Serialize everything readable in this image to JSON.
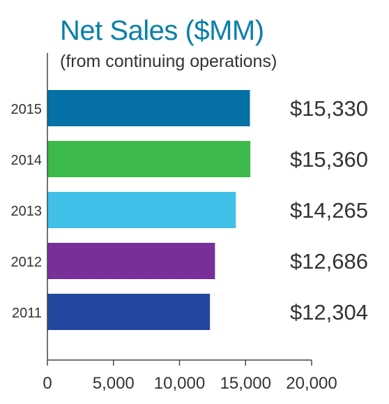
{
  "chart_data": {
    "type": "bar",
    "orientation": "horizontal",
    "title": "Net Sales ($MM)",
    "subtitle": "(from continuing operations)",
    "categories": [
      "2015",
      "2014",
      "2013",
      "2012",
      "2011"
    ],
    "values": [
      15330,
      15360,
      14265,
      12686,
      12304
    ],
    "value_labels": [
      "$15,330",
      "$15,360",
      "$14,265",
      "$12,686",
      "$12,304"
    ],
    "bar_colors": [
      "#0571a6",
      "#3cb94b",
      "#40c0e8",
      "#782f9a",
      "#2348a0"
    ],
    "xlim": [
      0,
      20000
    ],
    "x_ticks": [
      0,
      5000,
      10000,
      15000,
      20000
    ],
    "x_tick_labels": [
      "0",
      "5,000",
      "10,000",
      "15,000",
      "20,000"
    ],
    "grid": false,
    "legend": "none"
  },
  "colors": {
    "title": "#0a7fa8",
    "text": "#333333",
    "axis": "#444444"
  }
}
